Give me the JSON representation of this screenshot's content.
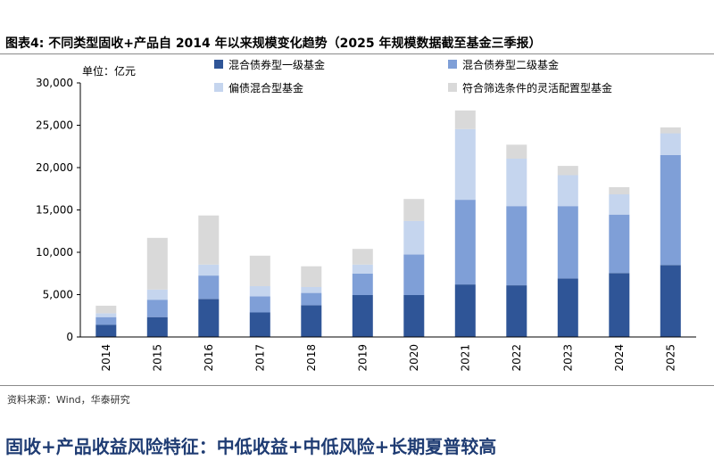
{
  "figure": {
    "title": "图表4:  不同类型固收+产品自 2014 年以来规模变化趋势（2025 年规模数据截至基金三季报）",
    "source": "资料来源：Wind，华泰研究",
    "bottom_heading": "固收+产品收益风险特征：中低收益+中低风险+长期夏普较高"
  },
  "chart_data": {
    "type": "bar",
    "stacked": true,
    "unit_label": "单位：亿元",
    "categories": [
      "2014",
      "2015",
      "2016",
      "2017",
      "2018",
      "2019",
      "2020",
      "2021",
      "2022",
      "2023",
      "2024",
      "2025"
    ],
    "series": [
      {
        "name": "混合债券型一级基金",
        "color": "#2f5597",
        "values": [
          1450,
          2350,
          4500,
          2900,
          3750,
          4950,
          4950,
          6200,
          6100,
          6900,
          7550,
          8500
        ]
      },
      {
        "name": "混合债券型二级基金",
        "color": "#7f9fd7",
        "values": [
          900,
          2050,
          2750,
          1900,
          1450,
          2550,
          4800,
          10000,
          9350,
          8550,
          6900,
          13000
        ]
      },
      {
        "name": "偏债混合型基金",
        "color": "#c5d5ee",
        "values": [
          450,
          1200,
          1300,
          1200,
          700,
          1050,
          3950,
          8350,
          5600,
          3650,
          2400,
          2550
        ]
      },
      {
        "name": "符合筛选条件的灵活配置型基金",
        "color": "#d9d9d9",
        "values": [
          900,
          6100,
          5800,
          3600,
          2450,
          1850,
          2600,
          2200,
          1650,
          1100,
          850,
          700
        ]
      }
    ],
    "ylim": [
      0,
      30000
    ],
    "yticks": [
      0,
      5000,
      10000,
      15000,
      20000,
      25000,
      30000
    ],
    "ytick_labels": [
      "0",
      "5,000",
      "10,000",
      "15,000",
      "20,000",
      "25,000",
      "30,000"
    ],
    "grid": false,
    "legend_position": "top"
  }
}
